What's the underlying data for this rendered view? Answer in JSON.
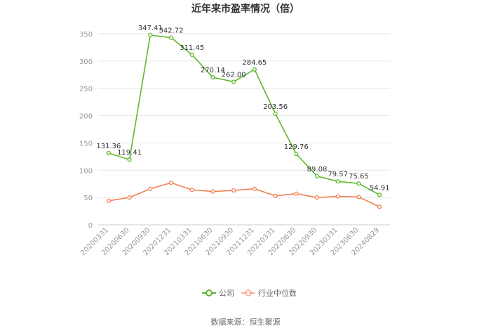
{
  "chart_data": {
    "type": "line",
    "title": "近年来市盈率情况（倍）",
    "xlabel": "",
    "ylabel": "",
    "ylim": [
      0,
      350
    ],
    "yticks": [
      0,
      50,
      100,
      150,
      200,
      250,
      300,
      350
    ],
    "grid": true,
    "legend_position": "bottom",
    "categories": [
      "20200331",
      "20200630",
      "20200930",
      "20201231",
      "20210331",
      "20210630",
      "20210930",
      "20211231",
      "20220331",
      "20220630",
      "20220930",
      "20230331",
      "20230630",
      "20240829"
    ],
    "series": [
      {
        "name": "公司",
        "color": "#5cb82a",
        "values": [
          131.36,
          119.41,
          347.41,
          342.72,
          311.45,
          270.14,
          262.0,
          284.65,
          203.56,
          129.76,
          89.08,
          79.57,
          75.65,
          54.91
        ],
        "labels": [
          "131.36",
          "119.41",
          "347.41",
          "342.72",
          "311.45",
          "270.14",
          "262.00",
          "284.65",
          "203.56",
          "129.76",
          "89.08",
          "79.57",
          "75.65",
          "54.91"
        ]
      },
      {
        "name": "行业中位数",
        "color": "#f08050",
        "values": [
          44,
          50,
          66,
          77,
          64,
          61,
          63,
          66,
          53,
          57,
          50,
          52,
          51,
          33
        ]
      }
    ]
  },
  "footer": {
    "source": "数据来源：恒生聚源"
  }
}
